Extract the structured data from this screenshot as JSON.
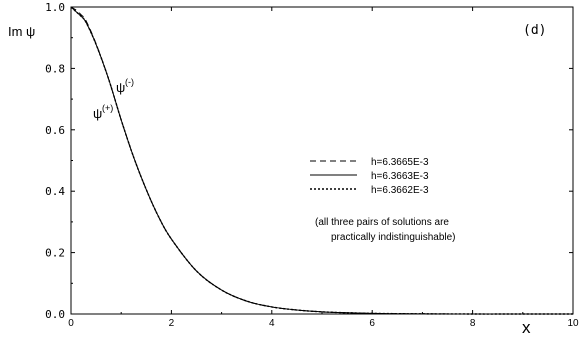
{
  "chart_data": {
    "type": "line",
    "panel_label": "(d)",
    "xlabel": "x",
    "ylabel": "Im ψ",
    "xlim": [
      0,
      10
    ],
    "ylim": [
      0,
      1.0
    ],
    "x_ticks": [
      "0",
      "2",
      "4",
      "6",
      "8",
      "10"
    ],
    "y_ticks": [
      "0.0",
      "0.2",
      "0.4",
      "0.6",
      "0.8",
      "1.0"
    ],
    "grid": false,
    "legend_position": "center-right",
    "curve_labels": [
      {
        "base": "ψ",
        "sup": "(-)"
      },
      {
        "base": "ψ",
        "sup": "(+)"
      }
    ],
    "note_lines": [
      "(all three pairs of solutions are",
      "practically indistinguishable)"
    ],
    "series": [
      {
        "name": "h=6.3665E-3",
        "style": "dashed",
        "x": [
          0,
          0.1,
          0.2,
          0.3,
          0.5,
          0.75,
          1.0,
          1.25,
          1.5,
          1.75,
          2.0,
          2.5,
          3.0,
          3.5,
          4.0,
          4.5,
          5.0,
          5.5,
          6.0,
          6.5,
          7.0,
          8.0,
          9.0,
          10.0
        ],
        "y": [
          1.0,
          0.99,
          0.975,
          0.955,
          0.88,
          0.765,
          0.632,
          0.51,
          0.405,
          0.315,
          0.244,
          0.14,
          0.078,
          0.042,
          0.023,
          0.013,
          0.007,
          0.004,
          0.002,
          0.001,
          0.0005,
          0.0,
          0.0,
          0.0
        ]
      },
      {
        "name": "h=6.3663E-3",
        "style": "solid",
        "x": [
          0,
          0.1,
          0.2,
          0.3,
          0.5,
          0.75,
          1.0,
          1.25,
          1.5,
          1.75,
          2.0,
          2.5,
          3.0,
          3.5,
          4.0,
          4.5,
          5.0,
          5.5,
          6.0,
          6.5,
          7.0,
          8.0,
          9.0,
          10.0
        ],
        "y": [
          1.0,
          0.985,
          0.97,
          0.95,
          0.878,
          0.765,
          0.632,
          0.51,
          0.405,
          0.315,
          0.244,
          0.14,
          0.078,
          0.042,
          0.023,
          0.013,
          0.007,
          0.004,
          0.002,
          0.001,
          0.0005,
          0.0,
          0.0,
          0.0
        ]
      },
      {
        "name": "h=6.3662E-3",
        "style": "dotted",
        "x": [
          0,
          0.1,
          0.2,
          0.3,
          0.5,
          0.75,
          1.0,
          1.25,
          1.5,
          1.75,
          2.0,
          2.5,
          3.0,
          3.5,
          4.0,
          4.5,
          5.0,
          5.5,
          6.0,
          6.5,
          7.0,
          8.0,
          9.0,
          10.0
        ],
        "y": [
          1.0,
          0.985,
          0.97,
          0.95,
          0.878,
          0.765,
          0.632,
          0.51,
          0.405,
          0.315,
          0.244,
          0.14,
          0.078,
          0.042,
          0.023,
          0.013,
          0.007,
          0.004,
          0.002,
          0.001,
          0.0005,
          0.0,
          0.0,
          0.0
        ]
      }
    ]
  }
}
